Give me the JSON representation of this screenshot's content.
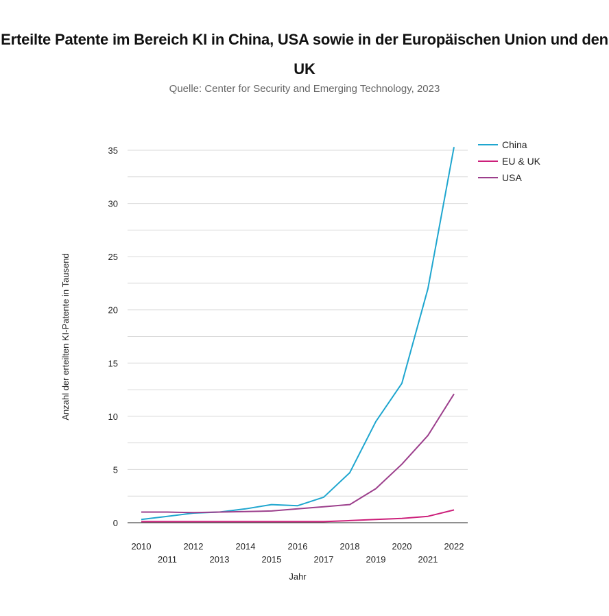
{
  "chart_data": {
    "type": "line",
    "title": "Erteilte Patente im Bereich KI in China, USA sowie in der Europäischen Union und den UK",
    "subtitle": "Quelle: Center for Security and Emerging Technology, 2023",
    "xlabel": "Jahr",
    "ylabel": "Anzahl der erteilten KI-Patente in Tausend",
    "x": [
      "2010",
      "2011",
      "2012",
      "2013",
      "2014",
      "2015",
      "2016",
      "2017",
      "2018",
      "2019",
      "2020",
      "2021",
      "2022"
    ],
    "ylim": [
      0,
      35
    ],
    "yticks": [
      0,
      5,
      10,
      15,
      20,
      25,
      30,
      35
    ],
    "grid_step": 2.5,
    "grid": true,
    "legend_position": "top-right",
    "series": [
      {
        "name": "China",
        "color": "#1fa6cf",
        "values": [
          0.3,
          0.6,
          0.9,
          1.0,
          1.3,
          1.7,
          1.6,
          2.4,
          4.7,
          9.5,
          13.1,
          22.0,
          35.3
        ]
      },
      {
        "name": "EU & UK",
        "color": "#cc1f7a",
        "values": [
          0.1,
          0.1,
          0.1,
          0.1,
          0.1,
          0.1,
          0.1,
          0.1,
          0.2,
          0.3,
          0.4,
          0.6,
          1.2
        ]
      },
      {
        "name": "USA",
        "color": "#9c3f8c",
        "values": [
          1.0,
          1.0,
          0.95,
          1.0,
          1.05,
          1.1,
          1.3,
          1.5,
          1.7,
          3.2,
          5.5,
          8.2,
          12.1
        ]
      }
    ]
  }
}
